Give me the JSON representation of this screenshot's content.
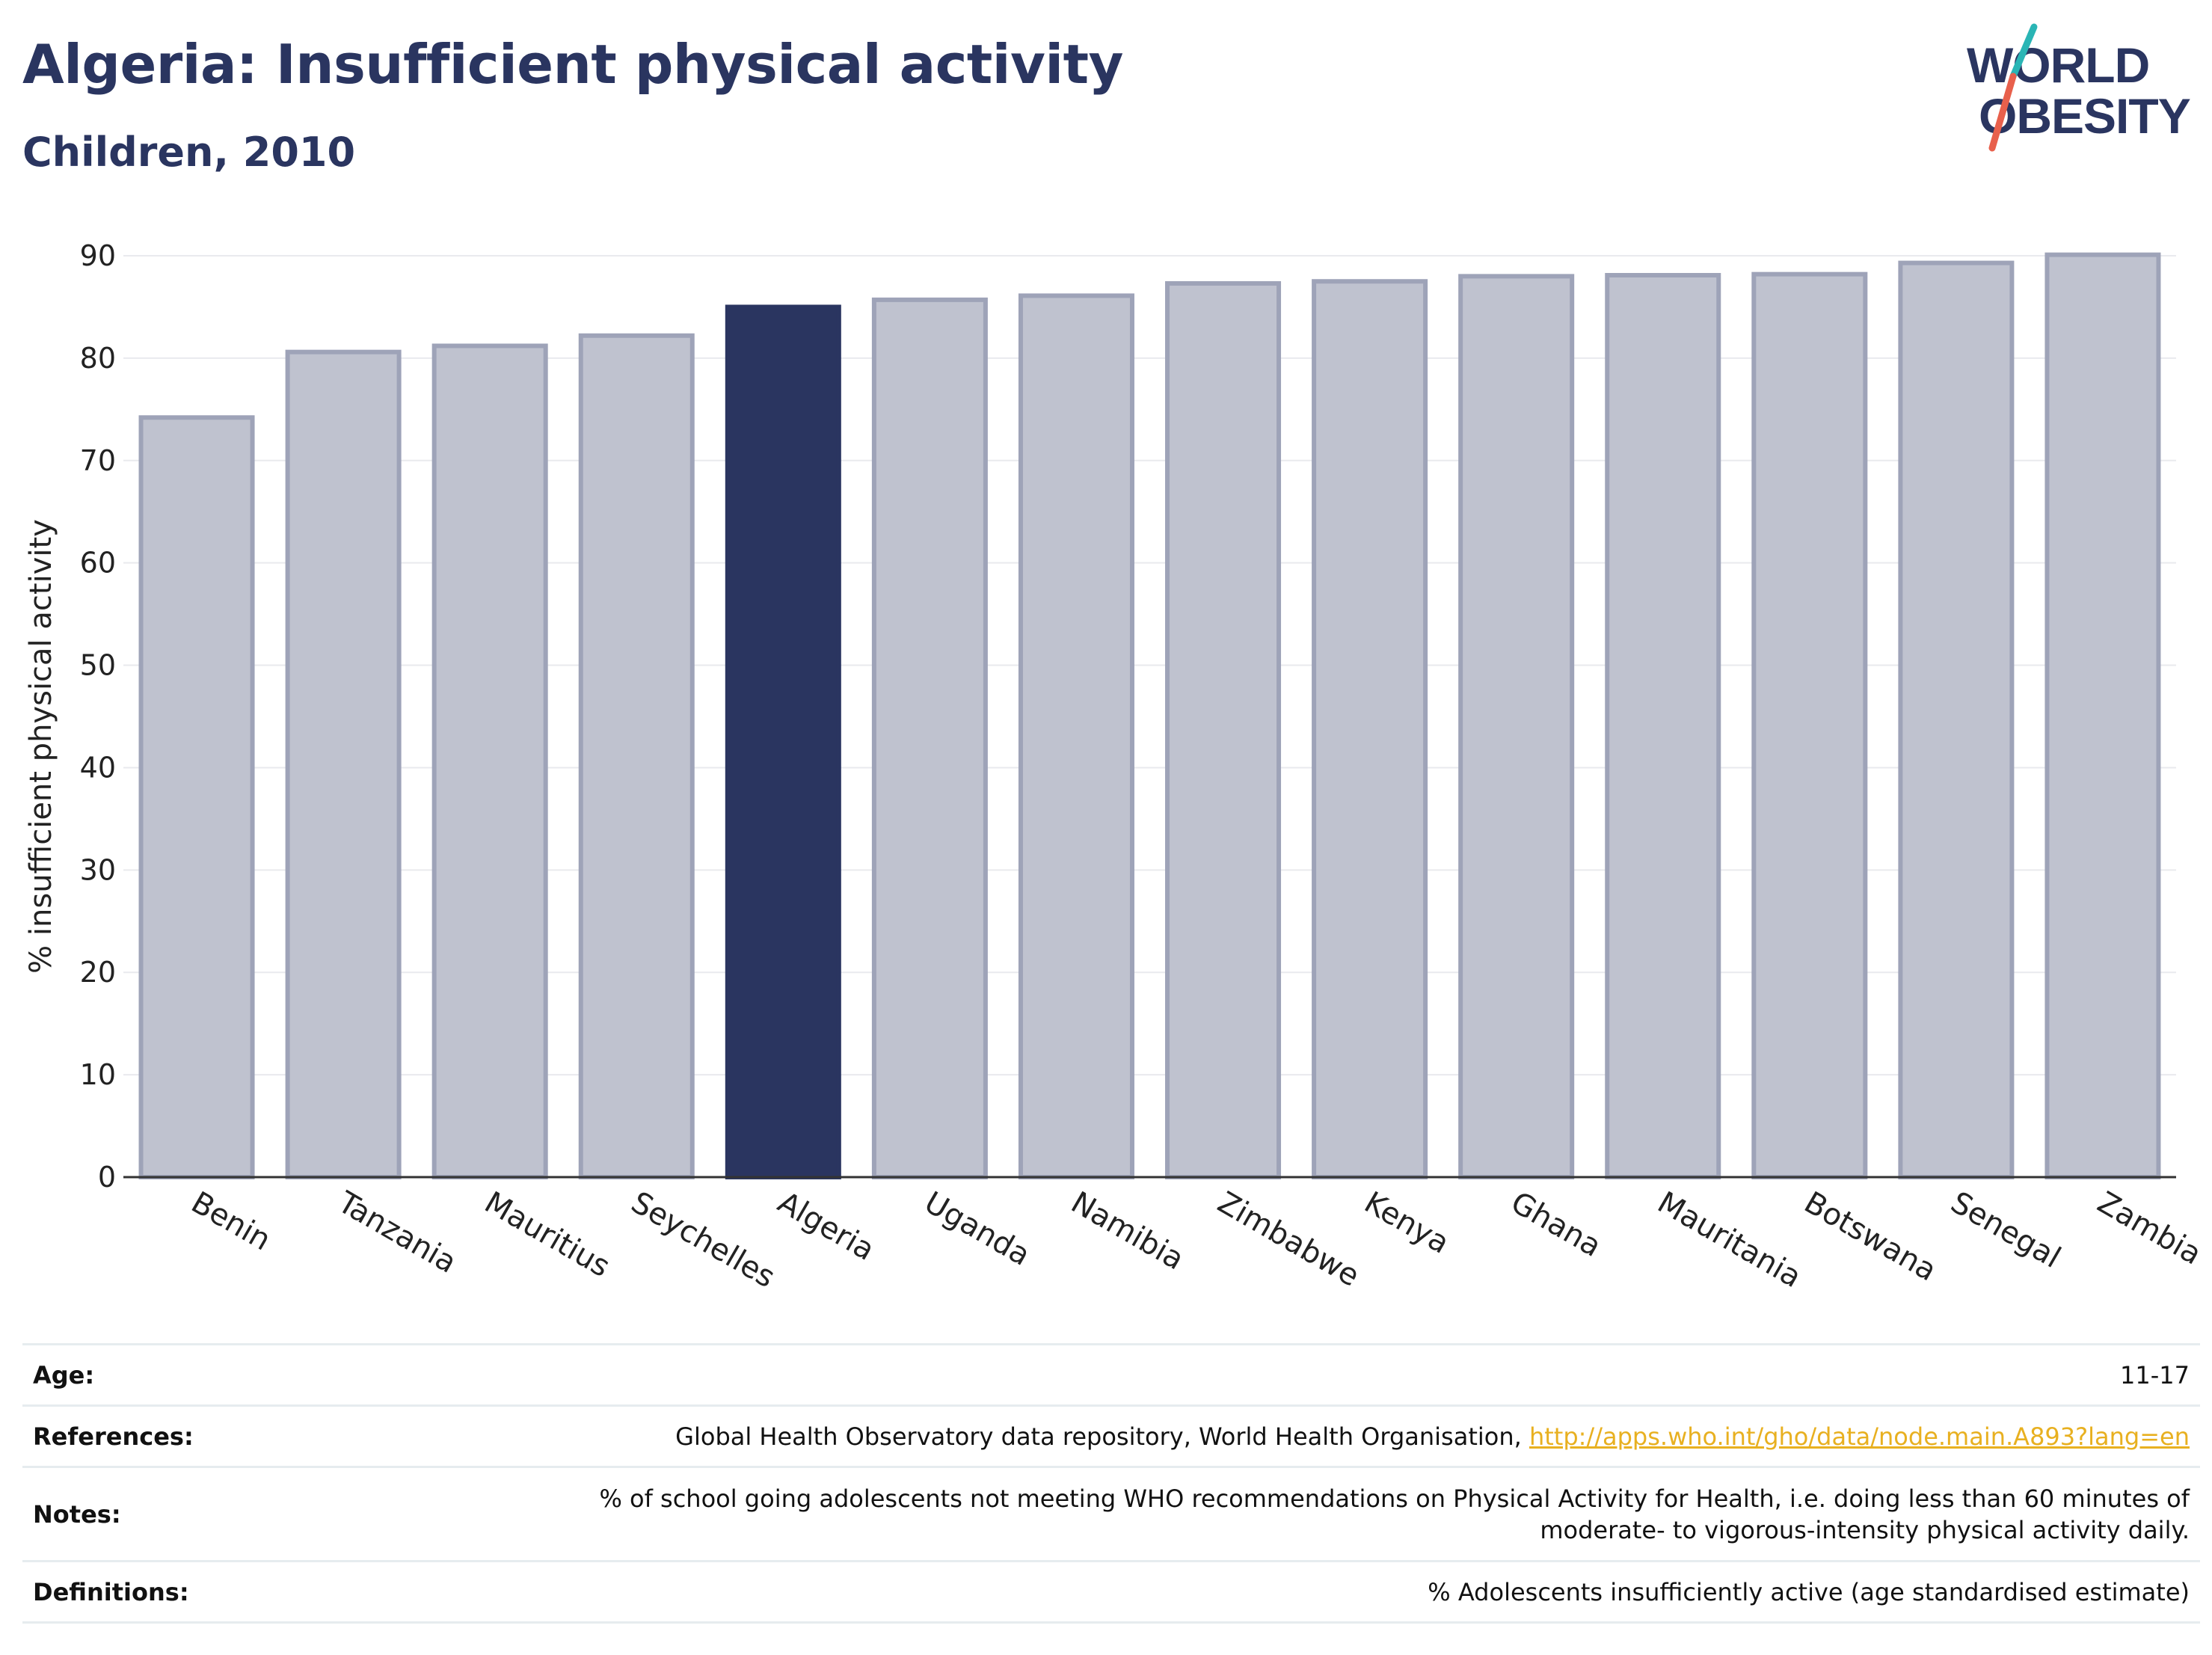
{
  "title": "Algeria: Insufficient physical activity",
  "subtitle": "Children, 2010",
  "logo": {
    "line1": "WORLD",
    "line2": "OBESITY",
    "text_color": "#2a3560",
    "slash_colors": [
      "#2ab5b5",
      "#e8604c"
    ]
  },
  "chart_data": {
    "type": "bar",
    "categories": [
      "Benin",
      "Tanzania",
      "Mauritius",
      "Seychelles",
      "Algeria",
      "Uganda",
      "Namibia",
      "Zimbabwe",
      "Kenya",
      "Ghana",
      "Mauritania",
      "Botswana",
      "Senegal",
      "Zambia"
    ],
    "values": [
      74.2,
      80.6,
      81.2,
      82.2,
      85.0,
      85.7,
      86.1,
      87.3,
      87.5,
      88.0,
      88.1,
      88.2,
      89.3,
      90.1
    ],
    "highlight": "Algeria",
    "ylabel": "% insufficient physical activity",
    "xlabel": "",
    "ylim": [
      0,
      90
    ],
    "yticks": [
      0,
      10,
      20,
      30,
      40,
      50,
      60,
      70,
      80,
      90
    ],
    "grid": true,
    "colors": {
      "highlight": "#2a3560",
      "bar_fill": "#bfc2cf",
      "bar_stroke": "#9ea3b8",
      "grid": "#e9eaee",
      "axis": "#333333"
    }
  },
  "info": {
    "age_label": "Age:",
    "age_value": "11-17",
    "references_label": "References:",
    "references_text": "Global Health Observatory data repository, World Health Organisation, ",
    "references_link": "http://apps.who.int/gho/data/node.main.A893?lang=en",
    "notes_label": "Notes:",
    "notes_line1": "% of school going adolescents not meeting WHO recommendations on Physical Activity for Health, i.e. doing less than 60 minutes of",
    "notes_line2": "moderate- to vigorous-intensity physical activity daily.",
    "definitions_label": "Definitions:",
    "definitions_value": "% Adolescents insufficiently active (age standardised estimate)"
  }
}
